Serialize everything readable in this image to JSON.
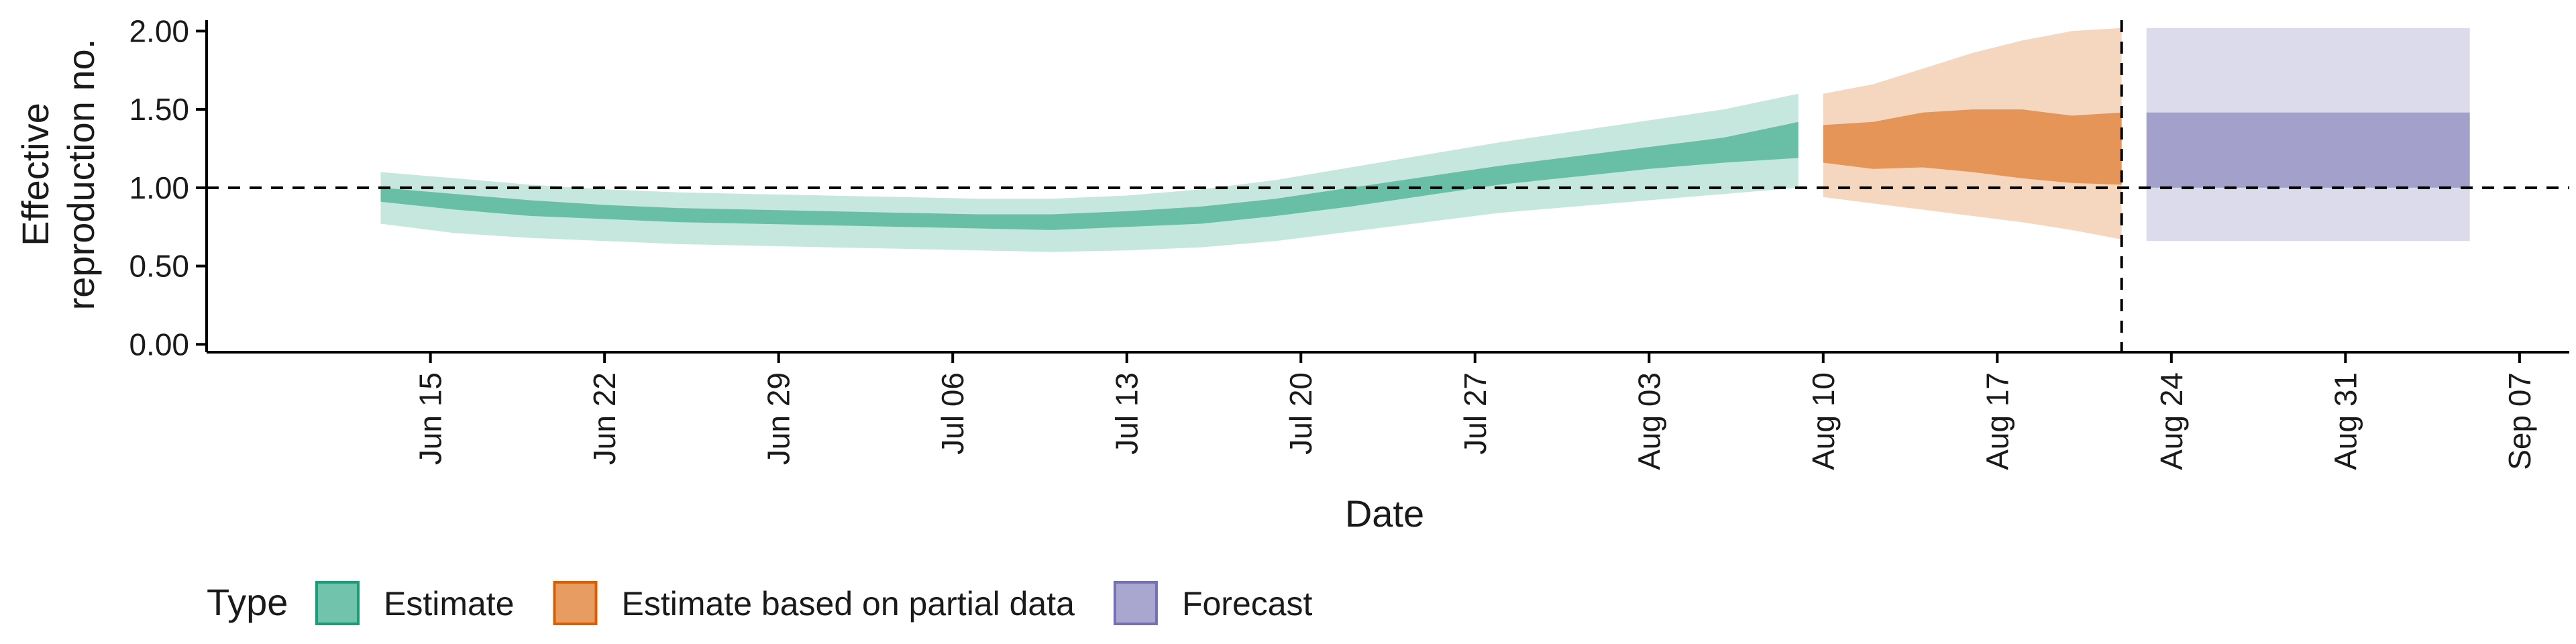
{
  "chart_data": {
    "type": "area",
    "xlabel": "Date",
    "ylabel_lines": [
      "Effective",
      "reproduction no."
    ],
    "ylim": [
      -0.05,
      2.07
    ],
    "yticks": [
      0.0,
      0.5,
      1.0,
      1.5,
      2.0
    ],
    "ytick_labels": [
      "0.00",
      "0.50",
      "1.00",
      "1.50",
      "2.00"
    ],
    "x_range": [
      "2020-06-06",
      "2020-09-09"
    ],
    "xticks": [
      "2020-06-15",
      "2020-06-22",
      "2020-06-29",
      "2020-07-06",
      "2020-07-13",
      "2020-07-20",
      "2020-07-27",
      "2020-08-03",
      "2020-08-10",
      "2020-08-17",
      "2020-08-24",
      "2020-08-31",
      "2020-09-07"
    ],
    "xtick_labels": [
      "Jun 15",
      "Jun 22",
      "Jun 29",
      "Jul 06",
      "Jul 13",
      "Jul 20",
      "Jul 27",
      "Aug 03",
      "Aug 10",
      "Aug 17",
      "Aug 24",
      "Aug 31",
      "Sep 07"
    ],
    "reference_line_y": 1.0,
    "reference_line_x": "2020-08-22",
    "legend": {
      "title": "Type",
      "position": "bottom"
    },
    "series": [
      {
        "name": "Estimate",
        "color": "#1b9e77",
        "dates": [
          "2020-06-13",
          "2020-06-16",
          "2020-06-19",
          "2020-06-22",
          "2020-06-25",
          "2020-06-28",
          "2020-07-01",
          "2020-07-04",
          "2020-07-07",
          "2020-07-10",
          "2020-07-13",
          "2020-07-16",
          "2020-07-19",
          "2020-07-22",
          "2020-07-25",
          "2020-07-28",
          "2020-07-31",
          "2020-08-03",
          "2020-08-06",
          "2020-08-09"
        ],
        "lower_90": [
          0.77,
          0.71,
          0.68,
          0.66,
          0.64,
          0.63,
          0.62,
          0.61,
          0.6,
          0.59,
          0.6,
          0.62,
          0.66,
          0.72,
          0.78,
          0.84,
          0.88,
          0.92,
          0.96,
          1.0
        ],
        "lower_50": [
          0.91,
          0.86,
          0.82,
          0.8,
          0.78,
          0.77,
          0.76,
          0.75,
          0.74,
          0.73,
          0.75,
          0.77,
          0.82,
          0.88,
          0.95,
          1.02,
          1.07,
          1.12,
          1.16,
          1.19
        ],
        "upper_50": [
          1.0,
          0.96,
          0.92,
          0.89,
          0.87,
          0.86,
          0.85,
          0.84,
          0.83,
          0.83,
          0.85,
          0.88,
          0.93,
          1.0,
          1.07,
          1.14,
          1.2,
          1.26,
          1.32,
          1.42
        ],
        "upper_90": [
          1.1,
          1.06,
          1.02,
          0.99,
          0.97,
          0.96,
          0.95,
          0.94,
          0.93,
          0.93,
          0.95,
          0.99,
          1.05,
          1.13,
          1.21,
          1.29,
          1.36,
          1.43,
          1.5,
          1.6
        ]
      },
      {
        "name": "Estimate based on partial data",
        "color": "#d95f02",
        "dates": [
          "2020-08-10",
          "2020-08-12",
          "2020-08-14",
          "2020-08-16",
          "2020-08-18",
          "2020-08-20",
          "2020-08-22"
        ],
        "lower_90": [
          0.94,
          0.9,
          0.86,
          0.82,
          0.78,
          0.73,
          0.67
        ],
        "lower_50": [
          1.16,
          1.12,
          1.13,
          1.1,
          1.06,
          1.03,
          1.02
        ],
        "upper_50": [
          1.4,
          1.42,
          1.48,
          1.5,
          1.5,
          1.46,
          1.48
        ],
        "upper_90": [
          1.6,
          1.66,
          1.76,
          1.86,
          1.94,
          2.0,
          2.02
        ]
      },
      {
        "name": "Forecast",
        "color": "#7570b3",
        "dates": [
          "2020-08-23",
          "2020-09-05"
        ],
        "lower_90": [
          0.66,
          0.66
        ],
        "lower_50": [
          1.0,
          1.0
        ],
        "upper_50": [
          1.48,
          1.48
        ],
        "upper_90": [
          2.02,
          2.02
        ]
      }
    ]
  }
}
